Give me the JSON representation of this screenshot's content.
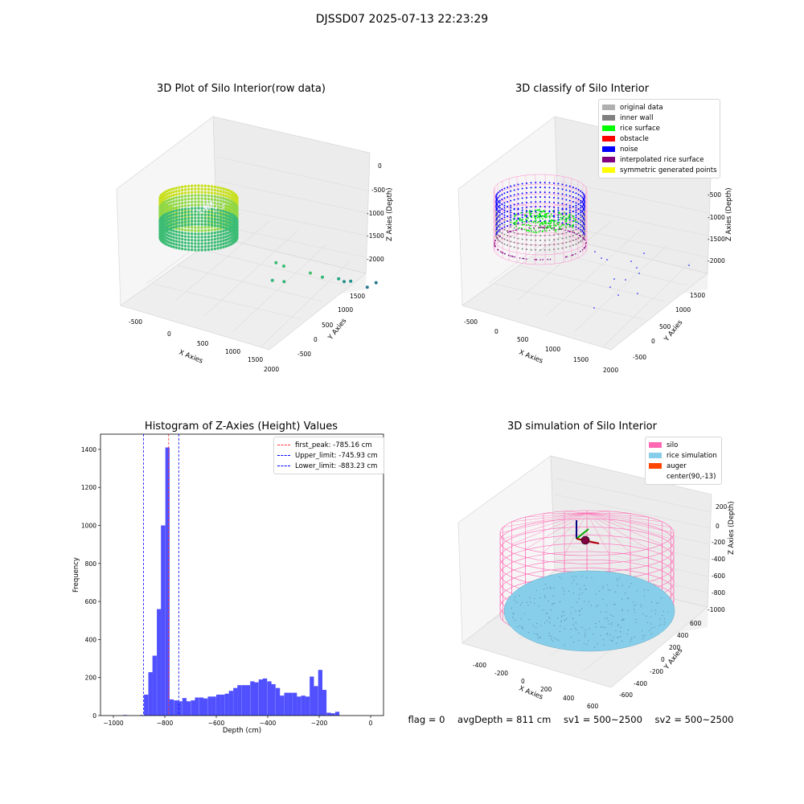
{
  "suptitle": "DJSSD07 2025-07-13 22:23:29",
  "footer": {
    "flag": "flag = 0",
    "avg": "avgDepth = 811 cm",
    "sv1": "sv1 = 500~2500",
    "sv2": "sv2 = 500~2500"
  },
  "chart_data": [
    {
      "type": "scatter",
      "title": "3D Plot of Silo Interior(row data)",
      "xlabel": "X Axies",
      "ylabel": "Y Axies",
      "zlabel": "Z Axies (Depth)",
      "xticks": [
        "-500",
        "0",
        "500",
        "1000",
        "1500",
        "2000"
      ],
      "yticks": [
        "-500",
        "0",
        "500",
        "1000",
        "1500"
      ],
      "zticks": [
        "0",
        "-500",
        "-1000",
        "-1500",
        "-2000"
      ],
      "points": [
        {
          "x": 1180,
          "y": 1580,
          "z": -1900
        },
        {
          "x": 1300,
          "y": 1550,
          "z": -1770
        },
        {
          "x": 1000,
          "y": 1400,
          "z": -1760
        },
        {
          "x": 1120,
          "y": 1320,
          "z": -1680
        },
        {
          "x": 1040,
          "y": 1200,
          "z": -1600
        },
        {
          "x": 900,
          "y": 1100,
          "z": -1560
        },
        {
          "x": 820,
          "y": 980,
          "z": -1450
        },
        {
          "x": 600,
          "y": 800,
          "z": -1300
        },
        {
          "x": 560,
          "y": 700,
          "z": -1200
        },
        {
          "x": 760,
          "y": 500,
          "z": -1380
        },
        {
          "x": 700,
          "y": 350,
          "z": -1300
        },
        {
          "x": 1900,
          "y": 1300,
          "z": -1900
        }
      ],
      "colors": {
        "ring_top": "#c8e020",
        "ring_bottom": "#22a884",
        "scatter": "#2a788e"
      }
    },
    {
      "type": "scatter",
      "title": "3D classify of Silo Interior",
      "xlabel": "X Axies",
      "ylabel": "Y Axies",
      "zlabel": "Z Axies (Depth)",
      "xticks": [
        "-500",
        "0",
        "500",
        "1000",
        "1500",
        "2000"
      ],
      "yticks": [
        "-500",
        "0",
        "500",
        "1000",
        "1500"
      ],
      "zticks": [
        "-500",
        "-1000",
        "-1500",
        "-2000"
      ],
      "legend": [
        {
          "label": "original data",
          "color": "#b0b0b0"
        },
        {
          "label": "inner wall",
          "color": "#808080"
        },
        {
          "label": "rice surface",
          "color": "#00ff00"
        },
        {
          "label": "obstacle",
          "color": "#ff0000"
        },
        {
          "label": "noise",
          "color": "#0000ff"
        },
        {
          "label": "interpolated rice surface",
          "color": "#800080"
        },
        {
          "label": "symmetric generated points",
          "color": "#ffff00"
        }
      ]
    },
    {
      "type": "bar",
      "title": "Histogram of Z-Axies (Height) Values",
      "xlabel": "Depth (cm)",
      "ylabel": "Frequency",
      "xlim": [
        -1050,
        50
      ],
      "ylim": [
        0,
        1480
      ],
      "xticks": [
        -1000,
        -800,
        -600,
        -400,
        -200,
        0
      ],
      "yticks": [
        0,
        200,
        400,
        600,
        800,
        1000,
        1200,
        1400
      ],
      "bar_color": "#5050ff",
      "bin_width": 16.5,
      "bins": [
        [
          -980,
          0
        ],
        [
          -963,
          3
        ],
        [
          -947,
          0
        ],
        [
          -930,
          0
        ],
        [
          -914,
          0
        ],
        [
          -897,
          3
        ],
        [
          -881,
          110
        ],
        [
          -864,
          228
        ],
        [
          -848,
          315
        ],
        [
          -831,
          560
        ],
        [
          -815,
          1000
        ],
        [
          -798,
          1410
        ],
        [
          -782,
          85
        ],
        [
          -765,
          80
        ],
        [
          -749,
          75
        ],
        [
          -732,
          92
        ],
        [
          -716,
          75
        ],
        [
          -699,
          80
        ],
        [
          -683,
          95
        ],
        [
          -666,
          95
        ],
        [
          -650,
          90
        ],
        [
          -633,
          100
        ],
        [
          -617,
          100
        ],
        [
          -600,
          110
        ],
        [
          -584,
          110
        ],
        [
          -567,
          115
        ],
        [
          -551,
          130
        ],
        [
          -534,
          145
        ],
        [
          -518,
          160
        ],
        [
          -501,
          160
        ],
        [
          -485,
          160
        ],
        [
          -468,
          180
        ],
        [
          -452,
          175
        ],
        [
          -435,
          190
        ],
        [
          -419,
          195
        ],
        [
          -402,
          180
        ],
        [
          -386,
          165
        ],
        [
          -369,
          145
        ],
        [
          -353,
          105
        ],
        [
          -336,
          120
        ],
        [
          -320,
          120
        ],
        [
          -303,
          120
        ],
        [
          -287,
          100
        ],
        [
          -270,
          105
        ],
        [
          -254,
          100
        ],
        [
          -237,
          205
        ],
        [
          -221,
          155
        ],
        [
          -204,
          240
        ],
        [
          -188,
          135
        ],
        [
          -171,
          15
        ],
        [
          -155,
          12
        ],
        [
          -138,
          20
        ]
      ],
      "vlines": [
        {
          "label": "first_peak: -785.16 cm",
          "x": -785.16,
          "color": "#ff3030"
        },
        {
          "label": "Upper_limit: -745.93 cm",
          "x": -745.93,
          "color": "#0000ff"
        },
        {
          "label": "Lower_limit: -883.23 cm",
          "x": -883.23,
          "color": "#0000ff"
        }
      ]
    },
    {
      "type": "scatter",
      "title": "3D simulation of Silo Interior",
      "xlabel": "X Axies",
      "ylabel": "Y Axies",
      "zlabel": "Z Axies (Depth)",
      "xticks": [
        "-400",
        "-200",
        "0",
        "200",
        "400",
        "600"
      ],
      "yticks": [
        "-600",
        "-400",
        "-200",
        "0",
        "200",
        "400",
        "600"
      ],
      "zticks": [
        "200",
        "0",
        "-200",
        "-400",
        "-600",
        "-800",
        "-1000"
      ],
      "legend": [
        {
          "label": "silo",
          "color": "#ff69b4"
        },
        {
          "label": "rice simulation",
          "color": "#87ceeb"
        },
        {
          "label": "auger",
          "color": "#ff4500"
        },
        {
          "label": "center(90,-13)",
          "color": "#ffffff"
        }
      ]
    }
  ]
}
